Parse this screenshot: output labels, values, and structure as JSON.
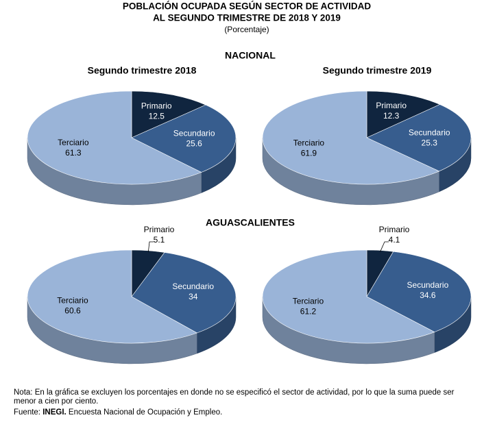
{
  "title": [
    "POBLACIÓN OCUPADA SEGÚN SECTOR DE ACTIVIDAD",
    "AL SEGUNDO TRIMESTRE DE 2018 Y 2019"
  ],
  "subtitle": "(Porcentaje)",
  "sections": [
    "NACIONAL",
    "AGUASCALIENTES"
  ],
  "chart_data": [
    {
      "type": "pie",
      "title": "Segundo trimestre 2018",
      "categories": [
        "Primario",
        "Secundario",
        "Terciario"
      ],
      "values": [
        12.5,
        25.6,
        61.3
      ],
      "colors": [
        "#10253f",
        "#375d8e",
        "#9ab4d8"
      ]
    },
    {
      "type": "pie",
      "title": "Segundo trimestre 2019",
      "categories": [
        "Primario",
        "Secundario",
        "Terciario"
      ],
      "values": [
        12.3,
        25.3,
        61.9
      ],
      "colors": [
        "#10253f",
        "#375d8e",
        "#9ab4d8"
      ]
    },
    {
      "type": "pie",
      "categories": [
        "Primario",
        "Secundario",
        "Terciario"
      ],
      "values": [
        5.1,
        34.0,
        60.6
      ],
      "colors": [
        "#10253f",
        "#375d8e",
        "#9ab4d8"
      ]
    },
    {
      "type": "pie",
      "categories": [
        "Primario",
        "Secundario",
        "Terciario"
      ],
      "values": [
        4.1,
        34.6,
        61.2
      ],
      "colors": [
        "#10253f",
        "#375d8e",
        "#9ab4d8"
      ]
    }
  ],
  "note_label": "Nota:",
  "note": "En la gráfica se excluyen los porcentajes en donde no se especificó el sector de actividad, por lo que la suma puede ser menor a cien por ciento.",
  "source_label": "Fuente:",
  "source_org": "INEGI.",
  "source_text": "Encuesta Nacional de Ocupación y Empleo."
}
